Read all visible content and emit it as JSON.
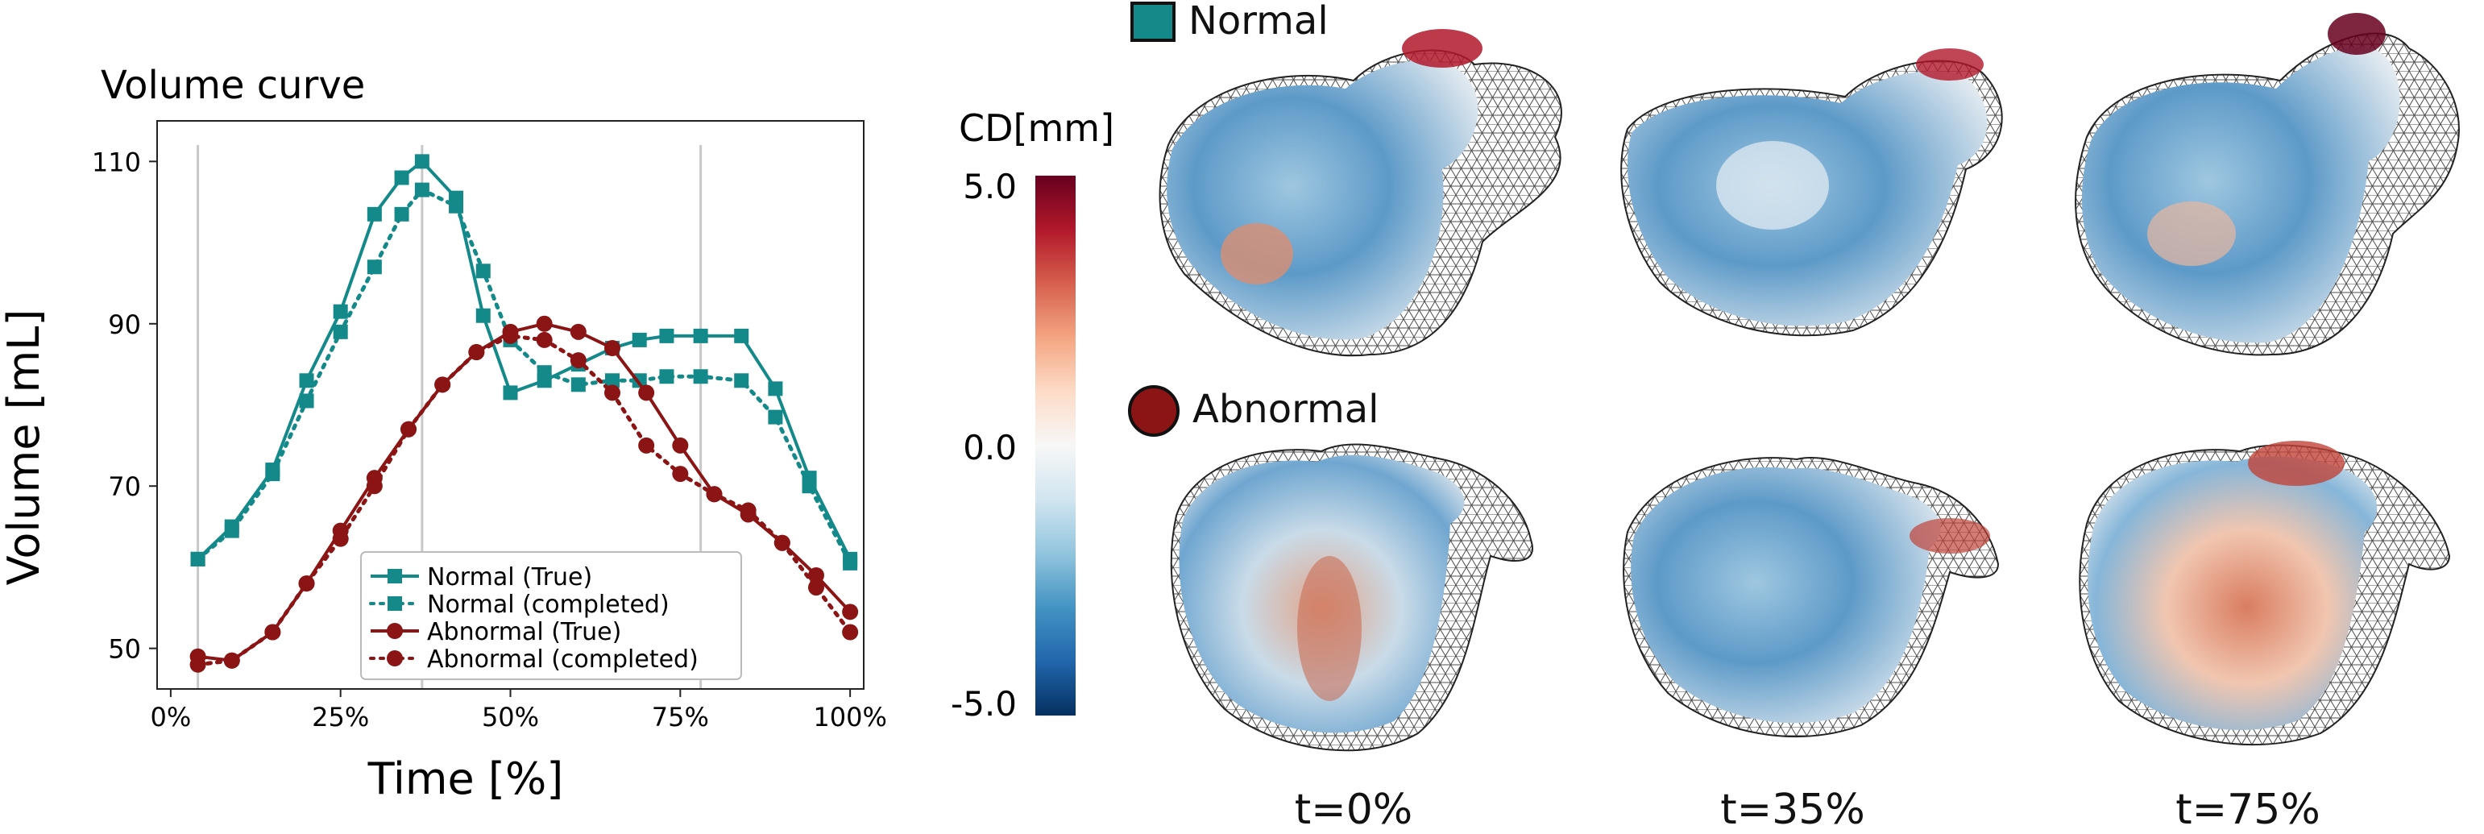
{
  "chart_data": {
    "type": "line",
    "title": "Volume curve",
    "xlabel": "Time [%]",
    "ylabel": "Volume [mL]",
    "xlim": [
      -2,
      102
    ],
    "ylim": [
      45,
      115
    ],
    "xticks": [
      0,
      25,
      50,
      75,
      100
    ],
    "xtick_labels": [
      "0%",
      "25%",
      "50%",
      "75%",
      "100%"
    ],
    "yticks": [
      50,
      70,
      90,
      110
    ],
    "vlines": [
      4,
      37,
      78
    ],
    "legend_loc": "lower-center",
    "series": [
      {
        "name": "Normal (True)",
        "color": "#14898a",
        "marker": "square",
        "linestyle": "solid",
        "x": [
          4,
          9,
          15,
          20,
          25,
          30,
          34,
          37,
          42,
          46,
          50,
          55,
          60,
          65,
          69,
          73,
          78,
          84,
          89,
          94,
          100
        ],
        "y": [
          61,
          65,
          72,
          83,
          91.5,
          103.5,
          108,
          110,
          105.5,
          91,
          81.5,
          83,
          85,
          87,
          88,
          88.5,
          88.5,
          88.5,
          82,
          71,
          61
        ]
      },
      {
        "name": "Normal (completed)",
        "color": "#14898a",
        "marker": "square",
        "linestyle": "dotted",
        "x": [
          4,
          9,
          15,
          20,
          25,
          30,
          34,
          37,
          42,
          46,
          50,
          55,
          60,
          65,
          69,
          73,
          78,
          84,
          89,
          94,
          100
        ],
        "y": [
          61,
          64.5,
          71.5,
          80.5,
          89,
          97,
          103.5,
          106.5,
          104.5,
          96.5,
          88,
          84,
          82.5,
          83,
          83,
          83.5,
          83.5,
          83,
          78.5,
          70,
          60.5
        ]
      },
      {
        "name": "Abnormal (True)",
        "color": "#8b1414",
        "marker": "circle",
        "linestyle": "solid",
        "x": [
          4,
          9,
          15,
          20,
          25,
          30,
          35,
          40,
          45,
          50,
          55,
          60,
          65,
          70,
          75,
          80,
          85,
          90,
          95,
          100
        ],
        "y": [
          49,
          48.5,
          52,
          58,
          64.5,
          71,
          77,
          82.5,
          86.5,
          89,
          90,
          89,
          87,
          81.5,
          75,
          69,
          66.5,
          63,
          59,
          54.5
        ]
      },
      {
        "name": "Abnormal (completed)",
        "color": "#8b1414",
        "marker": "circle",
        "linestyle": "dotted",
        "x": [
          4,
          9,
          15,
          20,
          25,
          30,
          35,
          40,
          45,
          50,
          55,
          60,
          65,
          70,
          75,
          80,
          85,
          90,
          95,
          100
        ],
        "y": [
          48,
          48.5,
          52,
          58,
          63.5,
          70,
          77,
          82.5,
          86.5,
          88.5,
          88,
          85.5,
          81.5,
          75,
          71.5,
          69,
          67,
          63,
          57.5,
          52
        ]
      }
    ]
  },
  "colorbar": {
    "label": "CD[mm]",
    "tick_labels": [
      "5.0",
      "0.0",
      "-5.0"
    ],
    "colors": [
      "#67001f",
      "#b2182b",
      "#d6604d",
      "#f4a582",
      "#fddbc7",
      "#f7f7f7",
      "#d1e5f0",
      "#92c5de",
      "#4393c3",
      "#2166ac",
      "#053061"
    ]
  },
  "panels": {
    "normal_label": "Normal",
    "abnormal_label": "Abnormal",
    "normal_color": "#14898a",
    "abnormal_color": "#8b1414",
    "time_labels": [
      "t=0%",
      "t=35%",
      "t=75%"
    ]
  }
}
